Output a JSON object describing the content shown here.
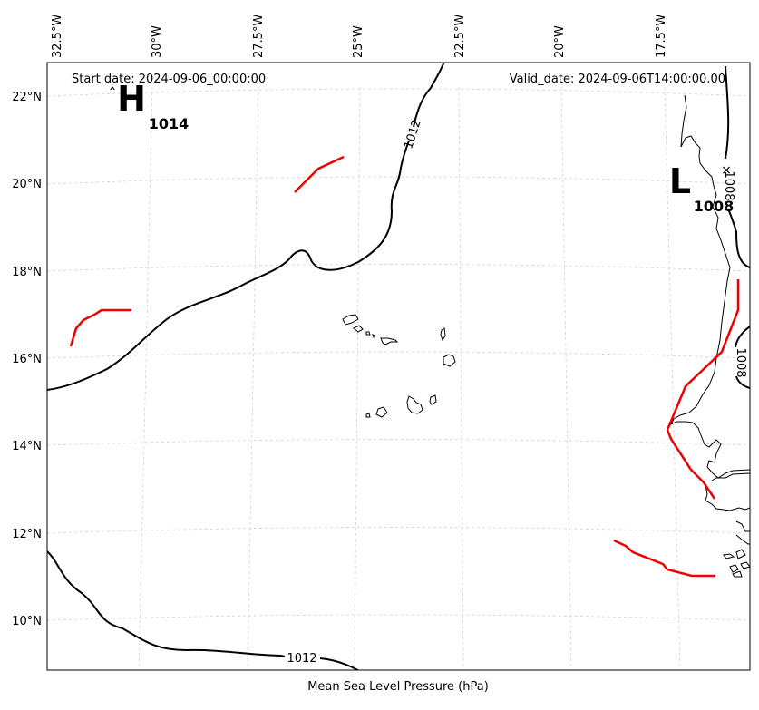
{
  "map": {
    "start_date": "Start date: 2024-09-06_00:00:00",
    "valid_date": "Valid_date: 2024-09-06T14:00:00.00",
    "xlabel": "Mean Sea Level Pressure (hPa)",
    "longitude_labels": [
      "32.5°W",
      "30°W",
      "27.5°W",
      "25°W",
      "22.5°W",
      "20°W",
      "17.5°W"
    ],
    "latitude_labels": [
      "22°N",
      "20°N",
      "18°N",
      "16°N",
      "14°N",
      "12°N",
      "10°N"
    ],
    "isobar_labels": [
      "1012",
      "1012",
      "1008",
      "1008"
    ],
    "systems": {
      "high": {
        "letter": "H",
        "value": "1014"
      },
      "low": {
        "letter": "L",
        "value": "1008"
      }
    },
    "low_center_marker": "×",
    "high_center_marker": "ˆ",
    "colors": {
      "isobar": "#000000",
      "front": "#ee0000",
      "grid": "#cccccc",
      "coast": "#000000"
    }
  }
}
